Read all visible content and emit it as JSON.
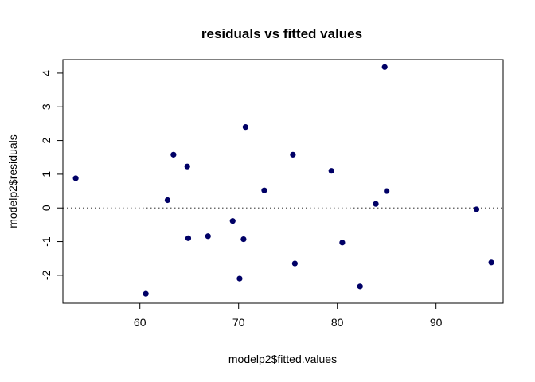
{
  "chart_data": {
    "type": "scatter",
    "title": "residuals vs fitted values",
    "xlabel": "modelp2$fitted.values",
    "ylabel": "modelp2$residuals",
    "xlim": [
      52.2,
      96.8
    ],
    "ylim": [
      -2.83,
      4.4
    ],
    "x_ticks": [
      60,
      70,
      80,
      90
    ],
    "y_ticks": [
      -2,
      -1,
      0,
      1,
      2,
      3,
      4
    ],
    "reference_line": {
      "y": 0,
      "style": "dotted"
    },
    "point_color": "#000066",
    "points": [
      {
        "x": 53.5,
        "y": 0.88
      },
      {
        "x": 60.6,
        "y": -2.55
      },
      {
        "x": 62.8,
        "y": 0.23
      },
      {
        "x": 63.4,
        "y": 1.58
      },
      {
        "x": 64.8,
        "y": 1.23
      },
      {
        "x": 64.9,
        "y": -0.9
      },
      {
        "x": 66.9,
        "y": -0.84
      },
      {
        "x": 69.4,
        "y": -0.39
      },
      {
        "x": 70.1,
        "y": -2.1
      },
      {
        "x": 70.5,
        "y": -0.93
      },
      {
        "x": 70.7,
        "y": 2.4
      },
      {
        "x": 72.6,
        "y": 0.52
      },
      {
        "x": 75.5,
        "y": 1.58
      },
      {
        "x": 75.7,
        "y": -1.65
      },
      {
        "x": 79.4,
        "y": 1.1
      },
      {
        "x": 80.5,
        "y": -1.03
      },
      {
        "x": 82.3,
        "y": -2.33
      },
      {
        "x": 83.9,
        "y": 0.12
      },
      {
        "x": 84.8,
        "y": 4.18
      },
      {
        "x": 85.0,
        "y": 0.5
      },
      {
        "x": 94.1,
        "y": -0.04
      },
      {
        "x": 95.6,
        "y": -1.62
      }
    ]
  }
}
